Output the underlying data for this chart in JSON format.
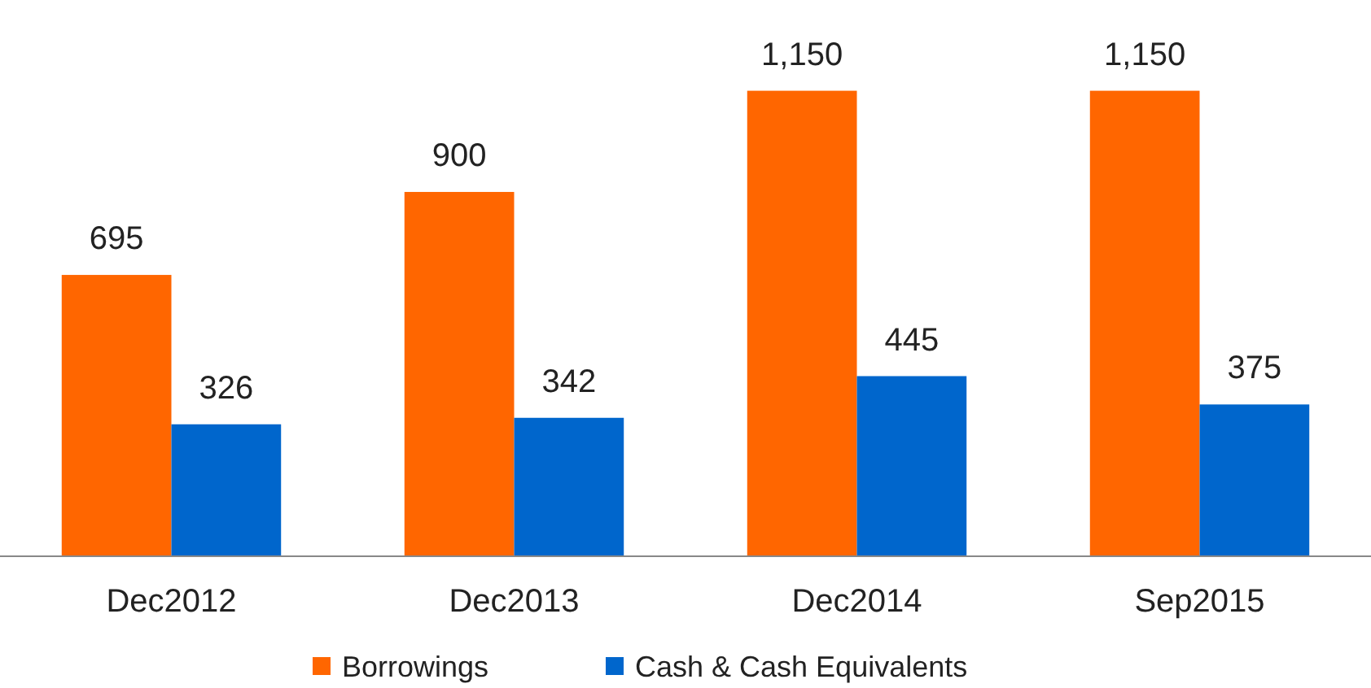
{
  "chart_data": {
    "type": "bar",
    "categories": [
      "Dec2012",
      "Dec2013",
      "Dec2014",
      "Sep2015"
    ],
    "series": [
      {
        "name": "Borrowings",
        "color": "#ff6600",
        "values": [
          695,
          900,
          1150,
          1150
        ],
        "value_labels": [
          "695",
          "900",
          "1,150",
          "1,150"
        ]
      },
      {
        "name": "Cash & Cash Equivalents",
        "color": "#0066cc",
        "values": [
          326,
          342,
          445,
          375
        ],
        "value_labels": [
          "326",
          "342",
          "445",
          "375"
        ]
      }
    ],
    "legend": "bottom"
  }
}
